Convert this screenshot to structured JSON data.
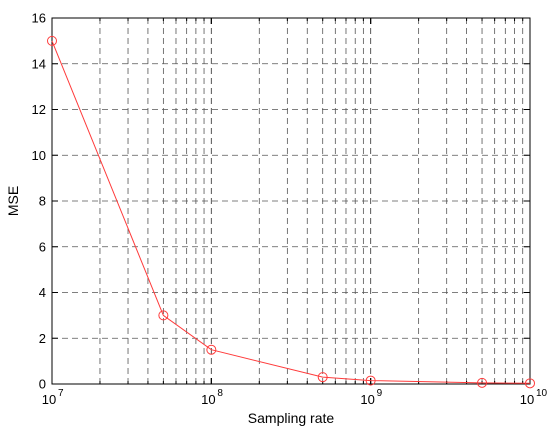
{
  "chart_data": {
    "type": "line",
    "xlabel": "Sampling rate",
    "ylabel": "MSE",
    "xscale": "log",
    "xlim": [
      10000000,
      10000000000
    ],
    "ylim": [
      0,
      16
    ],
    "grid": true,
    "x_tick_labels": [
      {
        "base": "10",
        "exp": "7"
      },
      {
        "base": "10",
        "exp": "8"
      },
      {
        "base": "10",
        "exp": "9"
      },
      {
        "base": "10",
        "exp": "10"
      }
    ],
    "y_tick_labels": [
      "0",
      "2",
      "4",
      "6",
      "8",
      "10",
      "12",
      "14",
      "16"
    ],
    "series": [
      {
        "line_color": "#ff3b3b",
        "marker": "circle",
        "x": [
          10000000,
          50000000,
          100000000,
          500000000,
          1000000000,
          5000000000,
          10000000000
        ],
        "y": [
          15.0,
          3.0,
          1.5,
          0.3,
          0.15,
          0.05,
          0.03
        ]
      }
    ]
  }
}
